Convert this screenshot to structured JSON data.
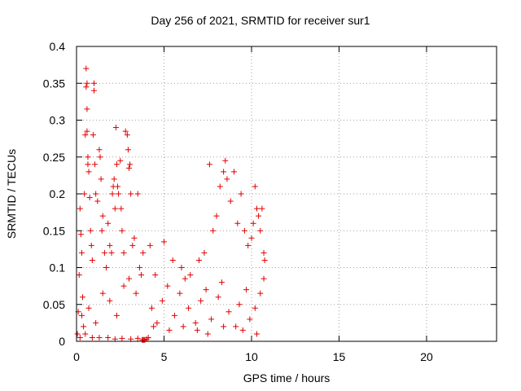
{
  "chart_data": {
    "type": "scatter",
    "title": "Day 256 of 2021, SRMTID for receiver sur1",
    "xlabel": "GPS time / hours",
    "ylabel": "SRMTID / TECUs",
    "xlim": [
      0,
      24
    ],
    "ylim": [
      0,
      0.4
    ],
    "xticks": [
      0,
      5,
      10,
      15,
      20
    ],
    "xtick_labels": [
      "0",
      "5",
      "10",
      "15",
      "20"
    ],
    "yticks": [
      0,
      0.05,
      0.1,
      0.15,
      0.2,
      0.25,
      0.3,
      0.35,
      0.4
    ],
    "ytick_labels": [
      "0",
      "0.05",
      "0.1",
      "0.15",
      "0.2",
      "0.25",
      "0.3",
      "0.35",
      "0.4"
    ],
    "grid": true,
    "marker": "+",
    "marker_color": "#e00000",
    "series": [
      {
        "name": "sur1",
        "points": [
          [
            0.05,
            0.01
          ],
          [
            0.1,
            0.04
          ],
          [
            0.15,
            0.09
          ],
          [
            0.2,
            0.18
          ],
          [
            0.25,
            0.145
          ],
          [
            0.3,
            0.12
          ],
          [
            0.35,
            0.06
          ],
          [
            0.4,
            0.02
          ],
          [
            0.45,
            0.2
          ],
          [
            0.5,
            0.28
          ],
          [
            0.55,
            0.37
          ],
          [
            0.55,
            0.345
          ],
          [
            0.6,
            0.35
          ],
          [
            0.6,
            0.315
          ],
          [
            0.6,
            0.285
          ],
          [
            0.65,
            0.25
          ],
          [
            0.65,
            0.24
          ],
          [
            0.7,
            0.23
          ],
          [
            0.75,
            0.195
          ],
          [
            0.8,
            0.15
          ],
          [
            0.85,
            0.13
          ],
          [
            0.9,
            0.11
          ],
          [
            0.95,
            0.28
          ],
          [
            1.0,
            0.35
          ],
          [
            1.0,
            0.34
          ],
          [
            1.05,
            0.24
          ],
          [
            1.1,
            0.2
          ],
          [
            1.2,
            0.19
          ],
          [
            1.3,
            0.26
          ],
          [
            1.35,
            0.25
          ],
          [
            1.4,
            0.22
          ],
          [
            1.45,
            0.15
          ],
          [
            1.5,
            0.17
          ],
          [
            1.6,
            0.12
          ],
          [
            1.7,
            0.1
          ],
          [
            1.8,
            0.16
          ],
          [
            1.9,
            0.13
          ],
          [
            2.0,
            0.12
          ],
          [
            2.05,
            0.2
          ],
          [
            2.1,
            0.21
          ],
          [
            2.15,
            0.22
          ],
          [
            2.2,
            0.18
          ],
          [
            2.25,
            0.29
          ],
          [
            2.3,
            0.24
          ],
          [
            2.35,
            0.21
          ],
          [
            2.4,
            0.2
          ],
          [
            2.5,
            0.245
          ],
          [
            2.55,
            0.18
          ],
          [
            2.6,
            0.15
          ],
          [
            2.7,
            0.12
          ],
          [
            2.8,
            0.285
          ],
          [
            2.9,
            0.28
          ],
          [
            2.95,
            0.26
          ],
          [
            3.0,
            0.235
          ],
          [
            3.05,
            0.24
          ],
          [
            3.1,
            0.2
          ],
          [
            3.2,
            0.13
          ],
          [
            3.3,
            0.14
          ],
          [
            3.5,
            0.2
          ],
          [
            3.6,
            0.1
          ],
          [
            3.7,
            0.09
          ],
          [
            3.8,
            0.12
          ],
          [
            4.2,
            0.13
          ],
          [
            4.5,
            0.09
          ],
          [
            5.0,
            0.135
          ],
          [
            5.5,
            0.11
          ],
          [
            6.0,
            0.1
          ],
          [
            6.5,
            0.09
          ],
          [
            7.0,
            0.11
          ],
          [
            7.3,
            0.12
          ],
          [
            7.6,
            0.24
          ],
          [
            7.8,
            0.15
          ],
          [
            8.0,
            0.17
          ],
          [
            8.2,
            0.21
          ],
          [
            8.4,
            0.23
          ],
          [
            8.5,
            0.245
          ],
          [
            8.6,
            0.22
          ],
          [
            8.8,
            0.19
          ],
          [
            9.0,
            0.23
          ],
          [
            9.2,
            0.16
          ],
          [
            9.4,
            0.2
          ],
          [
            9.6,
            0.15
          ],
          [
            9.8,
            0.13
          ],
          [
            10.0,
            0.14
          ],
          [
            10.1,
            0.16
          ],
          [
            10.2,
            0.21
          ],
          [
            10.3,
            0.18
          ],
          [
            10.4,
            0.17
          ],
          [
            10.5,
            0.15
          ],
          [
            10.6,
            0.18
          ],
          [
            10.7,
            0.12
          ],
          [
            10.75,
            0.11
          ],
          [
            0.2,
            0.005
          ],
          [
            0.5,
            0.01
          ],
          [
            0.9,
            0.005
          ],
          [
            1.3,
            0.005
          ],
          [
            1.8,
            0.005
          ],
          [
            2.2,
            0.003
          ],
          [
            2.6,
            0.004
          ],
          [
            3.1,
            0.003
          ],
          [
            3.5,
            0.004
          ],
          [
            3.75,
            0.002
          ],
          [
            3.8,
            0.002
          ],
          [
            3.85,
            0.002
          ],
          [
            3.9,
            0.002
          ],
          [
            4.0,
            0.003
          ],
          [
            4.1,
            0.005
          ],
          [
            0.3,
            0.035
          ],
          [
            0.7,
            0.045
          ],
          [
            1.1,
            0.025
          ],
          [
            1.5,
            0.065
          ],
          [
            1.9,
            0.055
          ],
          [
            2.3,
            0.035
          ],
          [
            2.7,
            0.075
          ],
          [
            3.0,
            0.085
          ],
          [
            3.4,
            0.065
          ],
          [
            4.3,
            0.045
          ],
          [
            4.6,
            0.025
          ],
          [
            4.9,
            0.055
          ],
          [
            5.2,
            0.075
          ],
          [
            5.6,
            0.035
          ],
          [
            5.9,
            0.065
          ],
          [
            6.2,
            0.085
          ],
          [
            6.4,
            0.045
          ],
          [
            6.8,
            0.025
          ],
          [
            7.1,
            0.055
          ],
          [
            7.4,
            0.07
          ],
          [
            7.7,
            0.03
          ],
          [
            8.1,
            0.06
          ],
          [
            8.3,
            0.08
          ],
          [
            8.7,
            0.04
          ],
          [
            9.1,
            0.02
          ],
          [
            9.3,
            0.05
          ],
          [
            9.7,
            0.07
          ],
          [
            9.9,
            0.03
          ],
          [
            10.2,
            0.045
          ],
          [
            10.5,
            0.065
          ],
          [
            10.7,
            0.085
          ],
          [
            4.4,
            0.02
          ],
          [
            5.3,
            0.015
          ],
          [
            6.1,
            0.02
          ],
          [
            6.9,
            0.015
          ],
          [
            7.5,
            0.01
          ],
          [
            8.4,
            0.02
          ],
          [
            9.5,
            0.015
          ],
          [
            10.3,
            0.01
          ]
        ]
      }
    ]
  }
}
